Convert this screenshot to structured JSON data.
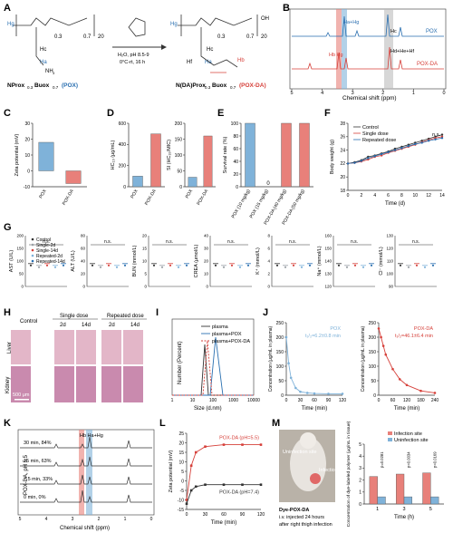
{
  "panel_labels": [
    "A",
    "B",
    "C",
    "D",
    "E",
    "F",
    "G",
    "H",
    "I",
    "J",
    "K",
    "L",
    "M"
  ],
  "colors": {
    "pox": "#7fb2d9",
    "poxda": "#e8807a",
    "poxda_dark": "#d6403a",
    "grey": "#bdbdbd",
    "dark": "#333333"
  },
  "panel_a": {
    "subscript_03": "0.3",
    "subscript_07": "0.7",
    "subscript_20": "20",
    "hb_label": "Hb",
    "ha_label": "Ha",
    "hc_label": "Hc",
    "hd_label": "Hd",
    "he_label": "He",
    "hf_label": "Hf",
    "hg_label": "Hg",
    "nh3": "NH",
    "nh3_sub": "3",
    "n_label": "N",
    "o_label": "O",
    "oh_label": "OH",
    "nh_label": "NH",
    "reagent_cond1": "H₂O, pH 8.5-9",
    "reagent_cond2": "0°C-rt, 16 h",
    "left_name": "NProx",
    "left_sub": "0.3",
    "left_name2": "Buox",
    "left_sub2": "0.7",
    "left_tag": "(POX)",
    "right_name": "N(DA)Prox",
    "right_sub": "0.3",
    "right_name2": "Buox",
    "right_sub2": "0.7",
    "right_tag": "(POX-DA)"
  },
  "panel_b": {
    "xlabel": "Chemical shift (ppm)",
    "ticks": [
      "5",
      "4",
      "3",
      "2",
      "1",
      "0"
    ],
    "label_haHg": "Ha+Hg",
    "label_hbHg": "Hb Hg",
    "label_hc": "Hc",
    "label_hdhehf": "Hd+He+Hf",
    "series_pox": "POX",
    "series_poxda": "POX-DA"
  },
  "chart_data": [
    {
      "type": "bar",
      "panel": "C",
      "ylabel": "Zeta potential (mV)",
      "categories": [
        "POX",
        "POX-DA"
      ],
      "values": [
        18,
        -8
      ],
      "ylim": [
        -10,
        30
      ],
      "yticks": [
        "-10",
        "0",
        "10",
        "20",
        "30"
      ]
    },
    {
      "type": "bar",
      "panel": "D-left",
      "ylabel": "HC₁₀ (μg/mL)",
      "categories": [
        "POX",
        "POX-DA"
      ],
      "values": [
        100,
        500
      ],
      "ylim": [
        0,
        600
      ],
      "yticks": [
        "0",
        "200",
        "400",
        "600"
      ]
    },
    {
      "type": "bar",
      "panel": "D-right",
      "ylabel": "SI (HC₁₀/MIC)",
      "categories": [
        "POX",
        "POX-DA"
      ],
      "values": [
        30,
        160
      ],
      "ylim": [
        0,
        200
      ],
      "yticks": [
        "0",
        "50",
        "100",
        "150",
        "200"
      ]
    },
    {
      "type": "bar",
      "panel": "E",
      "ylabel": "Survival rate (%)",
      "categories": [
        "POX (10 mg/kg)",
        "POX (15 mg/kg)",
        "POX-DA (40 mg/kg)",
        "POX-DA (50 mg/kg)"
      ],
      "values": [
        100,
        0,
        100,
        100
      ],
      "ylim": [
        0,
        100
      ],
      "yticks": [
        "0",
        "20",
        "40",
        "60",
        "80",
        "100"
      ],
      "annotation": "0"
    },
    {
      "type": "line",
      "panel": "F",
      "xlabel": "Time (d)",
      "ylabel": "Body weight (g)",
      "x": [
        0,
        1,
        2,
        3,
        4,
        5,
        6,
        7,
        8,
        9,
        10,
        11,
        12,
        13,
        14
      ],
      "series": [
        {
          "name": "Control",
          "values": [
            22,
            22.2,
            22.5,
            23,
            23.2,
            23.5,
            23.8,
            24.2,
            24.5,
            24.8,
            25.1,
            25.4,
            25.7,
            26,
            26.3
          ]
        },
        {
          "name": "Single dose",
          "values": [
            22,
            22.1,
            22.3,
            22.6,
            23,
            23.2,
            23.6,
            23.9,
            24.2,
            24.5,
            24.8,
            25.2,
            25.5,
            25.8,
            26
          ]
        },
        {
          "name": "Repeated dose",
          "values": [
            22,
            22.1,
            22.4,
            22.8,
            23.1,
            23.4,
            23.7,
            24,
            24.3,
            24.6,
            24.9,
            25.1,
            25.4,
            25.6,
            25.8
          ]
        }
      ],
      "ylim": [
        18,
        28
      ],
      "yticks": [
        "18",
        "20",
        "22",
        "24",
        "26",
        "28"
      ],
      "xticks": [
        "0",
        "2",
        "4",
        "6",
        "8",
        "10",
        "12",
        "14"
      ],
      "annotation": "n.s."
    },
    {
      "type": "line",
      "panel": "J-left",
      "title": "POX",
      "annotation": "t₁/₂=6.2±0.8 min",
      "xlabel": "Time (min)",
      "ylabel": "Concentration (μg/mL in plasma)",
      "x": [
        0,
        5,
        10,
        20,
        30,
        45,
        60,
        90,
        120
      ],
      "values": [
        200,
        110,
        60,
        25,
        12,
        8,
        6,
        5,
        5
      ],
      "ylim": [
        0,
        250
      ],
      "yticks": [
        "0",
        "50",
        "100",
        "150",
        "200",
        "250"
      ],
      "xticks": [
        "0",
        "30",
        "60",
        "90",
        "120"
      ]
    },
    {
      "type": "line",
      "panel": "J-right",
      "title": "POX-DA",
      "annotation": "t₁/₂=46.1±6.4 min",
      "xlabel": "Time (min)",
      "ylabel": "Concentration (μg/mL in plasma)",
      "x": [
        0,
        10,
        20,
        30,
        60,
        90,
        120,
        180,
        240
      ],
      "values": [
        230,
        200,
        170,
        140,
        90,
        55,
        35,
        15,
        8
      ],
      "ylim": [
        0,
        250
      ],
      "yticks": [
        "0",
        "50",
        "100",
        "150",
        "200",
        "250"
      ],
      "xticks": [
        "0",
        "60",
        "120",
        "180",
        "240"
      ]
    },
    {
      "type": "line",
      "panel": "L",
      "xlabel": "Time (min)",
      "ylabel": "Zeta potential (mV)",
      "x": [
        0,
        7.5,
        15,
        30,
        60,
        90,
        120
      ],
      "series": [
        {
          "name": "POX-DA (pH=5.5)",
          "values": [
            -10,
            8,
            15,
            18,
            19,
            19,
            19
          ]
        },
        {
          "name": "POX-DA (pH=7.4)",
          "values": [
            -12,
            -5,
            -3,
            -2,
            -2,
            -2,
            -2
          ]
        }
      ],
      "ylim": [
        -15,
        25
      ],
      "yticks": [
        "-15",
        "-10",
        "-5",
        "0",
        "5",
        "10",
        "15",
        "20",
        "25"
      ],
      "xticks": [
        "0",
        "30",
        "60",
        "90",
        "120"
      ]
    },
    {
      "type": "bar",
      "panel": "M",
      "ylabel": "Concentration of dye-labeled polymer (μg/mL in tissue)",
      "xlabel": "Time (h)",
      "categories": [
        "1",
        "3",
        "5"
      ],
      "series": [
        {
          "name": "Infection site",
          "values": [
            2.3,
            2.5,
            2.6
          ]
        },
        {
          "name": "Uninfection site",
          "values": [
            0.6,
            0.6,
            0.6
          ]
        }
      ],
      "ylim": [
        0,
        5
      ],
      "yticks": [
        "0",
        "1",
        "2",
        "3",
        "4",
        "5"
      ],
      "pvalues": [
        "p=0.0281",
        "p=0.0034",
        "p=0.0169"
      ]
    }
  ],
  "panel_g": {
    "legend": [
      "Control",
      "Single-2d",
      "Single-14d",
      "Repeated-2d",
      "Repeated-14d"
    ],
    "ns": "n.s.",
    "plots": [
      {
        "ylabel": "AST (U/L)",
        "yticks": [
          "0",
          "50",
          "100",
          "150",
          "200"
        ]
      },
      {
        "ylabel": "ALT (U/L)",
        "yticks": [
          "0",
          "20",
          "40",
          "60",
          "80"
        ]
      },
      {
        "ylabel": "BUN (mmol/L)",
        "yticks": [
          "0",
          "5",
          "10",
          "15",
          "20"
        ]
      },
      {
        "ylabel": "CREA (μmol/L)",
        "yticks": [
          "0",
          "10",
          "20",
          "30",
          "40"
        ]
      },
      {
        "ylabel": "K⁺ (mmol/L)",
        "yticks": [
          "0",
          "2",
          "4",
          "6",
          "8"
        ]
      },
      {
        "ylabel": "Na⁺ (mmol/L)",
        "yticks": [
          "120",
          "130",
          "140",
          "150",
          "160"
        ]
      },
      {
        "ylabel": "Cl⁻ (mmol/L)",
        "yticks": [
          "90",
          "100",
          "110",
          "120",
          "130"
        ]
      }
    ]
  },
  "panel_h": {
    "col_control": "Control",
    "single_dose": "Single dose",
    "repeated_dose": "Repeated dose",
    "col_2d": "2d",
    "col_14d": "14d",
    "row_liver": "Liver",
    "row_kidney": "Kidney",
    "scale": "500 μm"
  },
  "panel_i": {
    "ylabel": "Number (Percent)",
    "xlabel": "Size (d.nm)",
    "legend": [
      "plasma",
      "plasma+POX",
      "plasma+POX-DA"
    ],
    "xticks": [
      "1",
      "10",
      "100",
      "1000",
      "10000"
    ]
  },
  "panel_k": {
    "ylabel": "POX-DA, pH 5.5",
    "xlabel": "Chemical shift (ppm)",
    "spectra": [
      "30 min, 84%",
      "15 min, 63%",
      "7.5 min, 33%",
      "0 min, 0%"
    ],
    "peak_label": "Hb Ha+Hg",
    "ticks": [
      "5",
      "4",
      "3",
      "2",
      "1",
      "0"
    ]
  },
  "panel_m_photo": {
    "uninfection": "Uninfection site",
    "infection": "Infection site",
    "caption1": "Dye-POX-DA",
    "caption2": "i.v. injected 24 hours",
    "caption3": "after right thigh infection"
  }
}
